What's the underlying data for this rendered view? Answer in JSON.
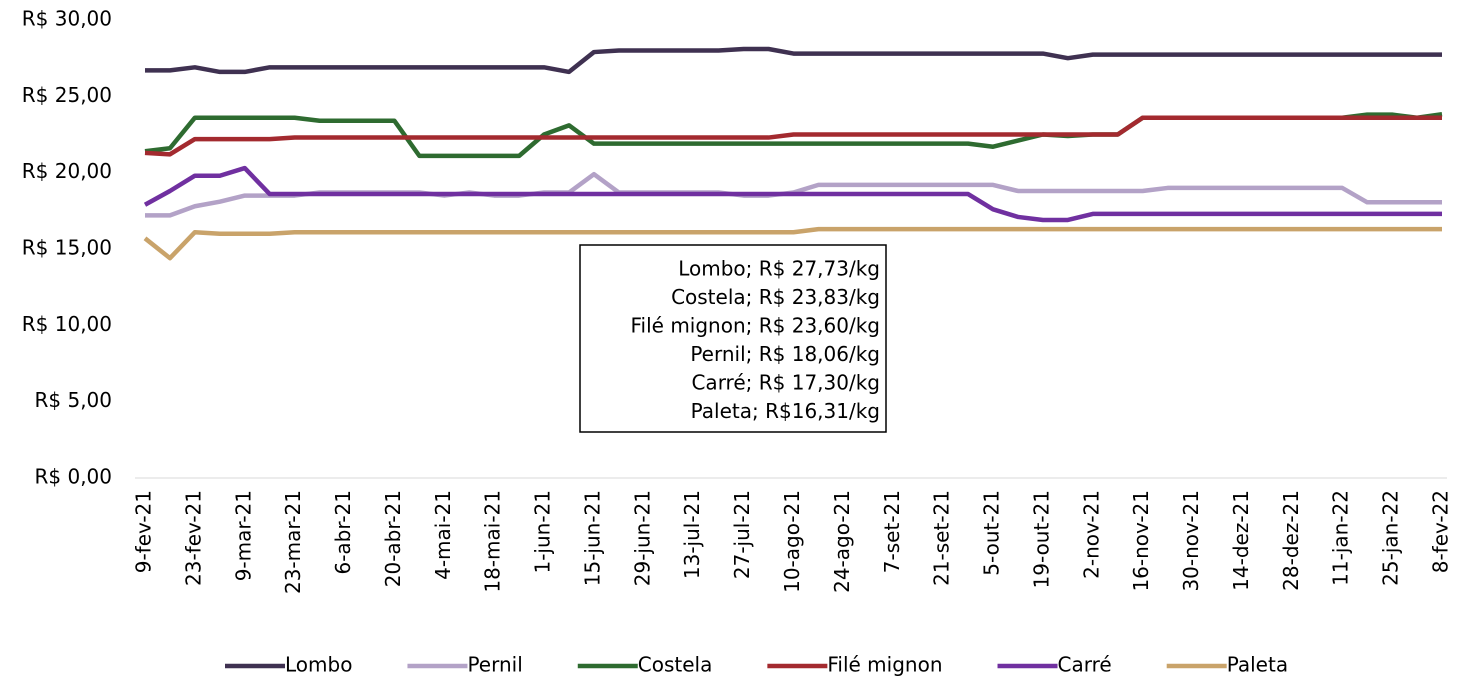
{
  "chart_data": {
    "type": "line",
    "categories": [
      "9-fev-21",
      null,
      "23-fev-21",
      null,
      "9-mar-21",
      null,
      "23-mar-21",
      null,
      "6-abr-21",
      null,
      "20-abr-21",
      null,
      "4-mai-21",
      null,
      "18-mai-21",
      null,
      "1-jun-21",
      null,
      "15-jun-21",
      null,
      "29-jun-21",
      null,
      "13-jul-21",
      null,
      "27-jul-21",
      null,
      "10-ago-21",
      null,
      "24-ago-21",
      null,
      "7-set-21",
      null,
      "21-set-21",
      null,
      "5-out-21",
      null,
      "19-out-21",
      null,
      "2-nov-21",
      null,
      "16-nov-21",
      null,
      "30-nov-21",
      null,
      "14-dez-21",
      null,
      "28-dez-21",
      null,
      "11-jan-22",
      null,
      "25-jan-22",
      null,
      "8-fev-22"
    ],
    "series": [
      {
        "name": "Lombo",
        "color": "#3f3151",
        "values": [
          26.7,
          26.7,
          26.9,
          26.6,
          26.6,
          26.9,
          26.9,
          26.9,
          26.9,
          26.9,
          26.9,
          26.9,
          26.9,
          26.9,
          26.9,
          26.9,
          26.9,
          26.6,
          27.9,
          28.0,
          28.0,
          28.0,
          28.0,
          28.0,
          28.1,
          28.1,
          27.8,
          27.8,
          27.8,
          27.8,
          27.8,
          27.8,
          27.8,
          27.8,
          27.8,
          27.8,
          27.8,
          27.5,
          27.73,
          27.73,
          27.73,
          27.73,
          27.73,
          27.73,
          27.73,
          27.73,
          27.73,
          27.73,
          27.73,
          27.73,
          27.73,
          27.73,
          27.73
        ]
      },
      {
        "name": "Pernil",
        "color": "#b3a2c7",
        "values": [
          17.2,
          17.2,
          17.8,
          18.1,
          18.5,
          18.5,
          18.5,
          18.7,
          18.7,
          18.7,
          18.7,
          18.7,
          18.5,
          18.7,
          18.5,
          18.5,
          18.7,
          18.7,
          19.9,
          18.7,
          18.7,
          18.7,
          18.7,
          18.7,
          18.5,
          18.5,
          18.7,
          19.2,
          19.2,
          19.2,
          19.2,
          19.2,
          19.2,
          19.2,
          19.2,
          18.8,
          18.8,
          18.8,
          18.8,
          18.8,
          18.8,
          19.0,
          19.0,
          19.0,
          19.0,
          19.0,
          19.0,
          19.0,
          19.0,
          18.06,
          18.06,
          18.06,
          18.06
        ]
      },
      {
        "name": "Costela",
        "color": "#2e6b30",
        "values": [
          21.4,
          21.6,
          23.6,
          23.6,
          23.6,
          23.6,
          23.6,
          23.4,
          23.4,
          23.4,
          23.4,
          21.1,
          21.1,
          21.1,
          21.1,
          21.1,
          22.5,
          23.1,
          21.9,
          21.9,
          21.9,
          21.9,
          21.9,
          21.9,
          21.9,
          21.9,
          21.9,
          21.9,
          21.9,
          21.9,
          21.9,
          21.9,
          21.9,
          21.9,
          21.7,
          22.1,
          22.5,
          22.4,
          22.5,
          22.5,
          23.6,
          23.6,
          23.6,
          23.6,
          23.6,
          23.6,
          23.6,
          23.6,
          23.6,
          23.8,
          23.8,
          23.6,
          23.83
        ]
      },
      {
        "name": "Filé mignon",
        "color": "#a32a2f",
        "values": [
          21.3,
          21.2,
          22.2,
          22.2,
          22.2,
          22.2,
          22.3,
          22.3,
          22.3,
          22.3,
          22.3,
          22.3,
          22.3,
          22.3,
          22.3,
          22.3,
          22.3,
          22.3,
          22.3,
          22.3,
          22.3,
          22.3,
          22.3,
          22.3,
          22.3,
          22.3,
          22.5,
          22.5,
          22.5,
          22.5,
          22.5,
          22.5,
          22.5,
          22.5,
          22.5,
          22.5,
          22.5,
          22.5,
          22.5,
          22.5,
          23.6,
          23.6,
          23.6,
          23.6,
          23.6,
          23.6,
          23.6,
          23.6,
          23.6,
          23.6,
          23.6,
          23.6,
          23.6
        ]
      },
      {
        "name": "Carré",
        "color": "#7030a0",
        "values": [
          17.9,
          18.8,
          19.8,
          19.8,
          20.3,
          18.6,
          18.6,
          18.6,
          18.6,
          18.6,
          18.6,
          18.6,
          18.6,
          18.6,
          18.6,
          18.6,
          18.6,
          18.6,
          18.6,
          18.6,
          18.6,
          18.6,
          18.6,
          18.6,
          18.6,
          18.6,
          18.6,
          18.6,
          18.6,
          18.6,
          18.6,
          18.6,
          18.6,
          18.6,
          17.6,
          17.1,
          16.9,
          16.9,
          17.3,
          17.3,
          17.3,
          17.3,
          17.3,
          17.3,
          17.3,
          17.3,
          17.3,
          17.3,
          17.3,
          17.3,
          17.3,
          17.3,
          17.3
        ]
      },
      {
        "name": "Paleta",
        "color": "#c9a36a",
        "values": [
          15.7,
          14.4,
          16.1,
          16.0,
          16.0,
          16.0,
          16.1,
          16.1,
          16.1,
          16.1,
          16.1,
          16.1,
          16.1,
          16.1,
          16.1,
          16.1,
          16.1,
          16.1,
          16.1,
          16.1,
          16.1,
          16.1,
          16.1,
          16.1,
          16.1,
          16.1,
          16.1,
          16.3,
          16.3,
          16.3,
          16.3,
          16.3,
          16.3,
          16.3,
          16.3,
          16.3,
          16.3,
          16.3,
          16.3,
          16.3,
          16.3,
          16.3,
          16.3,
          16.3,
          16.3,
          16.3,
          16.3,
          16.3,
          16.3,
          16.3,
          16.3,
          16.3,
          16.3
        ]
      }
    ],
    "ylim": [
      0,
      30
    ],
    "yticks": [
      {
        "value": 0,
        "label": "R$ 0,00"
      },
      {
        "value": 5,
        "label": "R$ 5,00"
      },
      {
        "value": 10,
        "label": "R$ 10,00"
      },
      {
        "value": 15,
        "label": "R$ 15,00"
      },
      {
        "value": 20,
        "label": "R$ 20,00"
      },
      {
        "value": 25,
        "label": "R$ 25,00"
      },
      {
        "value": 30,
        "label": "R$ 30,00"
      }
    ],
    "grid": false,
    "legend": "bottom",
    "annotation": [
      "Lombo; R$ 27,73/kg",
      "Costela; R$ 23,83/kg",
      "Filé mignon; R$ 23,60/kg",
      "Pernil; R$ 18,06/kg",
      "Carré; R$ 17,30/kg",
      "Paleta; R$16,31/kg"
    ]
  }
}
